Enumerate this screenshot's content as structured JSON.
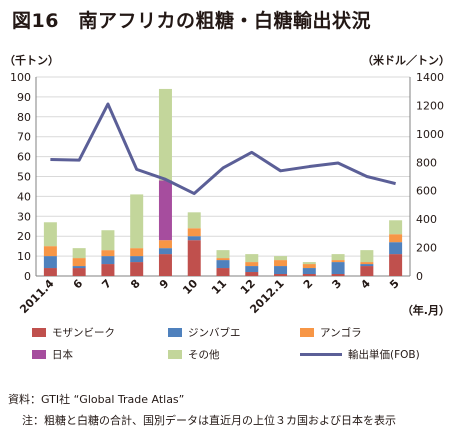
{
  "title": "図16　南アフリカの粗糖・白糖輸出状況",
  "chart_data": {
    "type": "bar",
    "stacked": true,
    "categories": [
      "2011.4",
      "6",
      "7",
      "8",
      "9",
      "10",
      "11",
      "12",
      "2012.1",
      "2",
      "3",
      "4",
      "5"
    ],
    "left_unit": "（千トン）",
    "right_unit": "（米ドル／トン）",
    "x_unit": "（年.月）",
    "ylim": [
      0,
      100
    ],
    "y_ticks": [
      0,
      10,
      20,
      30,
      40,
      50,
      60,
      70,
      80,
      90,
      100
    ],
    "y2lim": [
      0,
      1400
    ],
    "y2_ticks": [
      0,
      200,
      400,
      600,
      800,
      1000,
      1200,
      1400
    ],
    "grid": true,
    "series": [
      {
        "name": "モザンビーク",
        "color": "#c0504d",
        "values": [
          4,
          4,
          6,
          7,
          11,
          18,
          4,
          2,
          1,
          1,
          1,
          5,
          11
        ]
      },
      {
        "name": "ジンバブエ",
        "color": "#4f81bd",
        "values": [
          6,
          1,
          4,
          3,
          3,
          2,
          4,
          3,
          4,
          3,
          6,
          1,
          6
        ]
      },
      {
        "name": "アンゴラ",
        "color": "#f79646",
        "values": [
          5,
          4,
          3,
          4,
          4,
          4,
          1,
          2,
          3,
          2,
          1,
          1,
          4
        ]
      },
      {
        "name": "日本",
        "color": "#a64d9e",
        "values": [
          0,
          0,
          0,
          0,
          30,
          0,
          0,
          0,
          0,
          0,
          0,
          0,
          0
        ]
      },
      {
        "name": "その他",
        "color": "#c3d69b",
        "values": [
          12,
          5,
          10,
          27,
          46,
          8,
          4,
          4,
          2,
          1,
          3,
          6,
          7
        ]
      }
    ],
    "line_series": {
      "name": "輸出単価(FOB)",
      "color": "#5b5f97",
      "axis": "right",
      "values": [
        820,
        815,
        1210,
        750,
        680,
        580,
        760,
        870,
        740,
        770,
        795,
        700,
        650
      ]
    }
  },
  "legend": [
    {
      "label": "モザンビーク",
      "kind": "bar",
      "color": "#c0504d"
    },
    {
      "label": "ジンバブエ",
      "kind": "bar",
      "color": "#4f81bd"
    },
    {
      "label": "アンゴラ",
      "kind": "bar",
      "color": "#f79646"
    },
    {
      "label": "日本",
      "kind": "bar",
      "color": "#a64d9e"
    },
    {
      "label": "その他",
      "kind": "bar",
      "color": "#c3d69b"
    },
    {
      "label": "輸出単価(FOB)",
      "kind": "line",
      "color": "#5b5f97"
    }
  ],
  "notes": {
    "source": "資料：GTI社 “Global Trade Atlas”",
    "note": "注：粗糖と白糖の合計、国別データは直近月の上位３カ国および日本を表示"
  }
}
